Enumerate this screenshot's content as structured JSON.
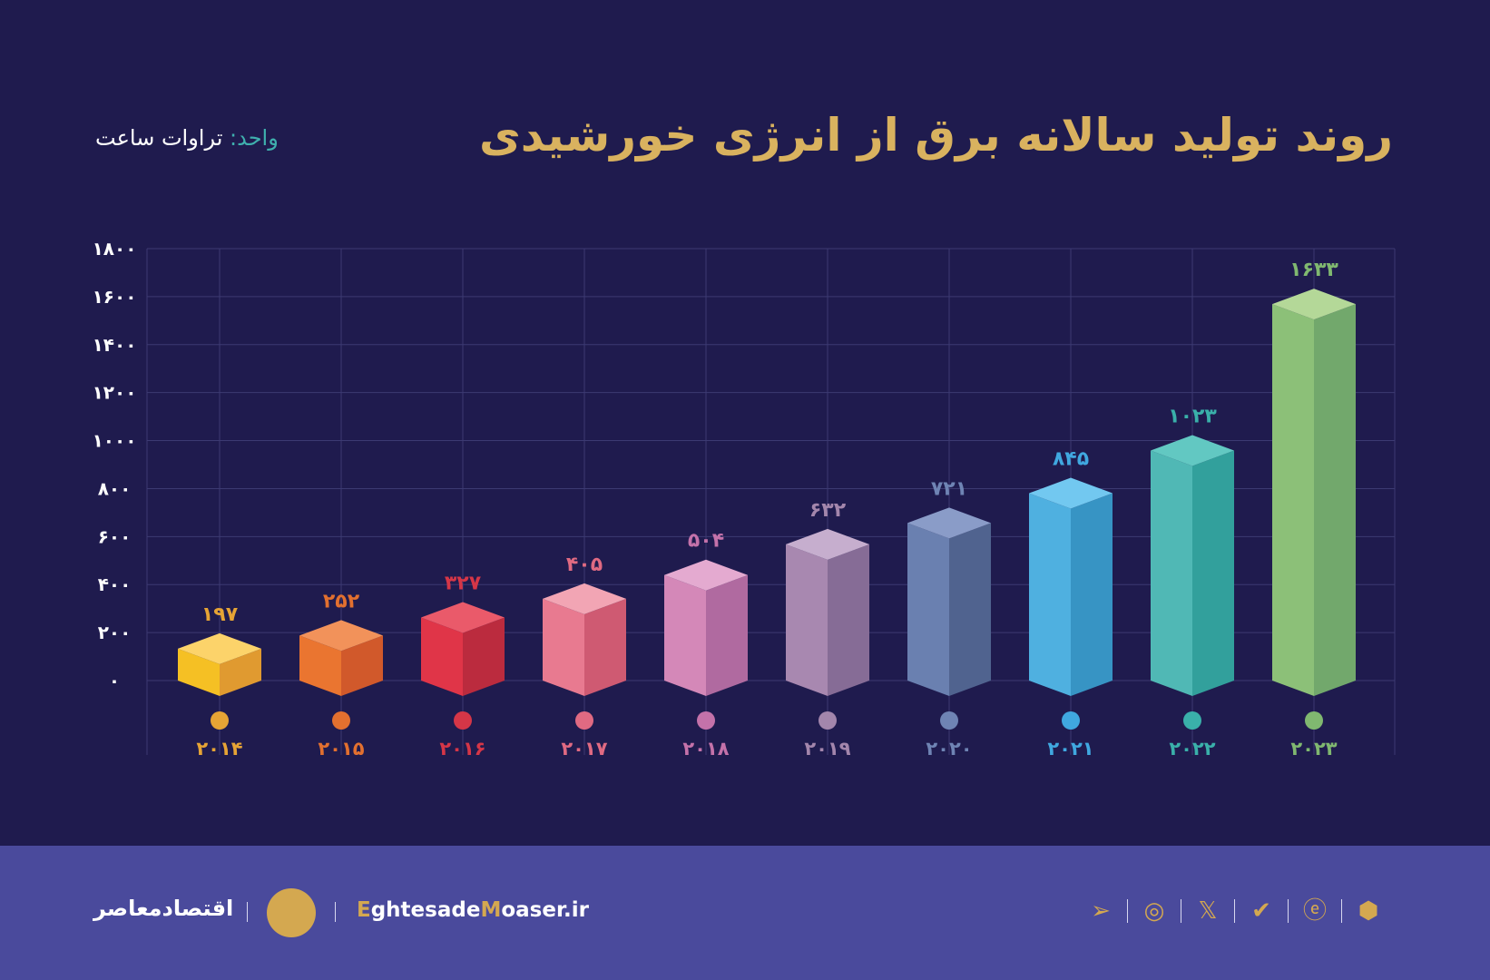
{
  "title": "روند تولید سالانه برق از انرژی خورشیدی",
  "unit": {
    "key": "واحد:",
    "value": "تراوات ساعت"
  },
  "chart_data": {
    "type": "bar",
    "title": "روند تولید سالانه برق از انرژی خورشیدی",
    "ylabel": "واحد: تراوات ساعت",
    "categories": [
      "۲۰۱۴",
      "۲۰۱۵",
      "۲۰۱۶",
      "۲۰۱۷",
      "۲۰۱۸",
      "۲۰۱۹",
      "۲۰۲۰",
      "۲۰۲۱",
      "۲۰۲۲",
      "۲۰۲۳"
    ],
    "values": [
      197,
      252,
      327,
      405,
      504,
      632,
      721,
      845,
      1023,
      1633
    ],
    "value_labels": [
      "۱۹۷",
      "۲۵۲",
      "۳۲۷",
      "۴۰۵",
      "۵۰۴",
      "۶۳۲",
      "۷۲۱",
      "۸۴۵",
      "۱۰۲۳",
      "۱۶۳۳"
    ],
    "ylim": [
      0,
      1800
    ],
    "yticks": [
      "۰",
      "۲۰۰",
      "۴۰۰",
      "۶۰۰",
      "۸۰۰",
      "۱۰۰۰",
      "۱۲۰۰",
      "۱۴۰۰",
      "۱۶۰۰",
      "۱۸۰۰"
    ],
    "grid": true,
    "colors": [
      {
        "top": "#fcd36a",
        "left": "#f5c024",
        "right": "#e09a30",
        "label": "#e6a435"
      },
      {
        "top": "#f2925a",
        "left": "#ea7530",
        "right": "#d1592b",
        "label": "#e2702f"
      },
      {
        "top": "#ea5a6a",
        "left": "#e03548",
        "right": "#bb2b3e",
        "label": "#d53647"
      },
      {
        "top": "#f2a5b4",
        "left": "#e87a90",
        "right": "#cf5a72",
        "label": "#e06a82"
      },
      {
        "top": "#e4aad0",
        "left": "#d488b8",
        "right": "#b06aa0",
        "label": "#c472aa"
      },
      {
        "top": "#c6aece",
        "left": "#a888b0",
        "right": "#866c96",
        "label": "#a386ac"
      },
      {
        "top": "#8a9cc8",
        "left": "#6a80b0",
        "right": "#50638f",
        "label": "#6f84b4"
      },
      {
        "top": "#72c8f0",
        "left": "#4fb0e0",
        "right": "#3794c4",
        "label": "#40a8e0"
      },
      {
        "top": "#62c8c2",
        "left": "#50b8b5",
        "right": "#32a09c",
        "label": "#3ab0aa"
      },
      {
        "top": "#b4d898",
        "left": "#8cc078",
        "right": "#72a86c",
        "label": "#80b870"
      }
    ]
  },
  "footer": {
    "brand": "اقتصادمعاصر",
    "site_e": "E",
    "site_1": "ghtesade",
    "site_m": "M",
    "site_2": "oaser.ir",
    "icons": [
      "telegram-icon",
      "instagram-icon",
      "x-icon",
      "bale-icon",
      "eitaa-icon",
      "rubika-icon"
    ]
  }
}
